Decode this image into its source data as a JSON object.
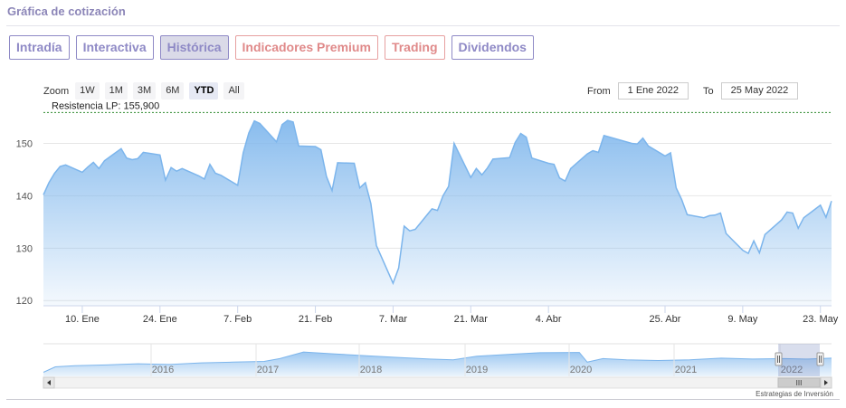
{
  "section_title": "Gráfica de cotización",
  "tabs": [
    {
      "label": "Intradía",
      "active": false,
      "premium": false
    },
    {
      "label": "Interactiva",
      "active": false,
      "premium": false
    },
    {
      "label": "Histórica",
      "active": true,
      "premium": false
    },
    {
      "label": "Indicadores Premium",
      "active": false,
      "premium": true
    },
    {
      "label": "Trading",
      "active": false,
      "premium": true
    },
    {
      "label": "Dividendos",
      "active": false,
      "premium": false
    }
  ],
  "zoom": {
    "label": "Zoom",
    "buttons": [
      "1W",
      "1M",
      "3M",
      "6M",
      "YTD",
      "All"
    ],
    "selected": "YTD"
  },
  "range": {
    "from_label": "From",
    "from_value": "1 Ene 2022",
    "to_label": "To",
    "to_value": "25 May 2022"
  },
  "colors": {
    "accent": "#8f8ac6",
    "premium": "#e08a8a",
    "series_line": "#7cb5ec",
    "resistance_line": "#2e8b2e"
  },
  "navigator": {
    "years": [
      "2016",
      "2017",
      "2018",
      "2019",
      "2020",
      "2021",
      "2022"
    ],
    "scroll_grip": "III"
  },
  "credit": "Estrategias de Inversión",
  "chart_data": {
    "type": "area",
    "xlabel": "",
    "ylabel": "",
    "ylim": [
      119,
      157
    ],
    "yticks": [
      120,
      130,
      140,
      150
    ],
    "xticks": [
      "10. Ene",
      "24. Ene",
      "7. Feb",
      "21. Feb",
      "7. Mar",
      "21. Mar",
      "4. Abr",
      "25. Abr",
      "9. May",
      "23. May"
    ],
    "xtick_dates": [
      "2022-01-10",
      "2022-01-24",
      "2022-02-07",
      "2022-02-21",
      "2022-03-07",
      "2022-03-21",
      "2022-04-04",
      "2022-04-25",
      "2022-05-09",
      "2022-05-23"
    ],
    "x_range": [
      "2022-01-03",
      "2022-05-25"
    ],
    "resistance": {
      "label": "Resistencia LP: 155,900",
      "value": 155.9
    },
    "series": [
      {
        "x": [
          "2022-01-03",
          "2022-01-04",
          "2022-01-05",
          "2022-01-06",
          "2022-01-07",
          "2022-01-10",
          "2022-01-11",
          "2022-01-12",
          "2022-01-13",
          "2022-01-14",
          "2022-01-17",
          "2022-01-18",
          "2022-01-19",
          "2022-01-20",
          "2022-01-21",
          "2022-01-24",
          "2022-01-25",
          "2022-01-26",
          "2022-01-27",
          "2022-01-28",
          "2022-01-31",
          "2022-02-01",
          "2022-02-02",
          "2022-02-03",
          "2022-02-04",
          "2022-02-07",
          "2022-02-08",
          "2022-02-09",
          "2022-02-10",
          "2022-02-11",
          "2022-02-14",
          "2022-02-15",
          "2022-02-16",
          "2022-02-17",
          "2022-02-18",
          "2022-02-21",
          "2022-02-22",
          "2022-02-23",
          "2022-02-24",
          "2022-02-25",
          "2022-02-28",
          "2022-03-01",
          "2022-03-02",
          "2022-03-03",
          "2022-03-04",
          "2022-03-07",
          "2022-03-08",
          "2022-03-09",
          "2022-03-10",
          "2022-03-11",
          "2022-03-14",
          "2022-03-15",
          "2022-03-16",
          "2022-03-17",
          "2022-03-18",
          "2022-03-21",
          "2022-03-22",
          "2022-03-23",
          "2022-03-24",
          "2022-03-25",
          "2022-03-28",
          "2022-03-29",
          "2022-03-30",
          "2022-03-31",
          "2022-04-01",
          "2022-04-04",
          "2022-04-05",
          "2022-04-06",
          "2022-04-07",
          "2022-04-08",
          "2022-04-11",
          "2022-04-12",
          "2022-04-13",
          "2022-04-14",
          "2022-04-19",
          "2022-04-20",
          "2022-04-21",
          "2022-04-22",
          "2022-04-25",
          "2022-04-26",
          "2022-04-27",
          "2022-04-28",
          "2022-04-29",
          "2022-05-02",
          "2022-05-03",
          "2022-05-04",
          "2022-05-05",
          "2022-05-06",
          "2022-05-09",
          "2022-05-10",
          "2022-05-11",
          "2022-05-12",
          "2022-05-13",
          "2022-05-16",
          "2022-05-17",
          "2022-05-18",
          "2022-05-19",
          "2022-05-20",
          "2022-05-23",
          "2022-05-24",
          "2022-05-25"
        ],
        "values": [
          140.2,
          142.5,
          144.3,
          145.6,
          145.9,
          144.5,
          145.5,
          146.4,
          145.2,
          146.7,
          149.0,
          147.2,
          146.9,
          147.1,
          148.3,
          147.8,
          143.0,
          145.4,
          144.7,
          145.2,
          143.8,
          143.2,
          146.0,
          144.3,
          143.9,
          142.0,
          148.2,
          152.0,
          154.3,
          153.8,
          150.3,
          153.6,
          154.4,
          154.1,
          149.5,
          149.4,
          148.8,
          143.7,
          141.0,
          146.3,
          146.2,
          141.5,
          142.5,
          138.5,
          130.5,
          123.3,
          126.2,
          134.2,
          133.3,
          133.6,
          137.5,
          137.2,
          140.0,
          141.8,
          150.0,
          143.5,
          145.2,
          144.0,
          145.3,
          147.0,
          147.3,
          150.2,
          151.9,
          151.2,
          147.2,
          146.2,
          146.0,
          143.4,
          142.8,
          145.2,
          148.0,
          148.6,
          148.3,
          151.5,
          150.0,
          149.9,
          151.0,
          149.5,
          147.6,
          148.2,
          141.5,
          139.3,
          136.4,
          135.8,
          136.2,
          136.3,
          136.7,
          132.8,
          129.6,
          129.0,
          131.4,
          129.1,
          132.6,
          135.4,
          136.9,
          136.7,
          133.8,
          135.8,
          138.2,
          135.9,
          139.0
        ]
      }
    ]
  }
}
